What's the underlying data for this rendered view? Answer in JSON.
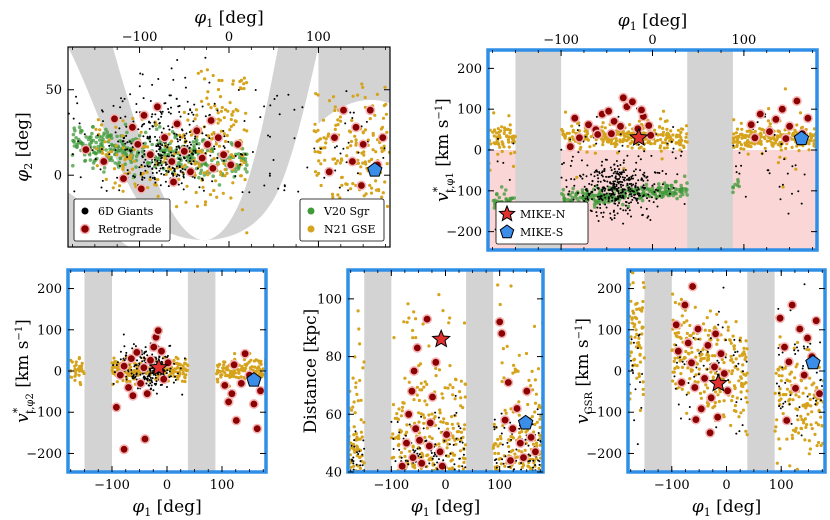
{
  "figure": {
    "colors": {
      "giant": "#000000",
      "gse": "#d6a31c",
      "sgr": "#3f9a3a",
      "retro_fill": "#8b0000",
      "retro_edge": "#f5b5b5",
      "mask": "#d3d3d3",
      "highlight": "#2f8fe6",
      "negative_region": "#fbd6d6",
      "mike_n": "#e0312f",
      "mike_s": "#3a8de8"
    }
  },
  "chart_data": [
    {
      "id": "sky",
      "type": "scatter",
      "xlabel_top": "φ1 [deg]",
      "ylabel": "φ2 [deg]",
      "xlim": [
        -180,
        180
      ],
      "ylim": [
        -42,
        75
      ],
      "xticks": [
        -100,
        0,
        100
      ],
      "yticks": [
        0,
        50
      ],
      "legend_left": [
        {
          "label": "6D Giants",
          "marker": "giant"
        },
        {
          "label": "Retrograde",
          "marker": "retro"
        }
      ],
      "legend_right": [
        {
          "label": "V20 Sgr",
          "marker": "sgr"
        },
        {
          "label": "N21 GSE",
          "marker": "gse"
        }
      ],
      "retrograde_stars": [
        [
          -128,
          33
        ],
        [
          -108,
          28
        ],
        [
          -102,
          18
        ],
        [
          -95,
          35
        ],
        [
          -88,
          12
        ],
        [
          -80,
          40
        ],
        [
          -72,
          22
        ],
        [
          -64,
          8
        ],
        [
          -58,
          30
        ],
        [
          -50,
          14
        ],
        [
          -43,
          2
        ],
        [
          -36,
          26
        ],
        [
          -30,
          10
        ],
        [
          -24,
          18
        ],
        [
          -18,
          4
        ],
        [
          -12,
          22
        ],
        [
          -6,
          12
        ],
        [
          2,
          6
        ],
        [
          -140,
          8
        ],
        [
          -118,
          -2
        ],
        [
          -98,
          -8
        ],
        [
          -62,
          -4
        ],
        [
          118,
          22
        ],
        [
          128,
          38
        ],
        [
          138,
          8
        ],
        [
          142,
          28
        ],
        [
          150,
          18
        ],
        [
          158,
          38
        ],
        [
          166,
          6
        ],
        [
          112,
          2
        ],
        [
          148,
          -6
        ],
        [
          172,
          22
        ],
        [
          -160,
          15
        ],
        [
          -20,
          32
        ],
        [
          10,
          18
        ]
      ],
      "mike_s": [
        [
          163,
          3
        ]
      ]
    },
    {
      "id": "pm_phi1",
      "type": "scatter",
      "highlighted": true,
      "xlabel_top": "φ1 [deg]",
      "ylabel": "v*t,φ1 [km s−1]",
      "xlim": [
        -180,
        180
      ],
      "ylim": [
        -245,
        245
      ],
      "xticks": [
        -100,
        0,
        100
      ],
      "yticks": [
        -200,
        -100,
        0,
        100,
        200
      ],
      "masked_phi1_ranges": [
        [
          -150,
          -100
        ],
        [
          38,
          88
        ]
      ],
      "negative_region_shaded": true,
      "legend": [
        {
          "label": "MIKE-N",
          "marker": "star"
        },
        {
          "label": "MIKE-S",
          "marker": "pentagon"
        }
      ],
      "retrograde_stars": [
        [
          -85,
          78
        ],
        [
          -70,
          62
        ],
        [
          -62,
          50
        ],
        [
          -55,
          88
        ],
        [
          -48,
          95
        ],
        [
          -42,
          70
        ],
        [
          -35,
          58
        ],
        [
          -28,
          106
        ],
        [
          -22,
          118
        ],
        [
          -16,
          52
        ],
        [
          -10,
          82
        ],
        [
          -4,
          60
        ],
        [
          -60,
          38
        ],
        [
          -80,
          30
        ],
        [
          -45,
          40
        ],
        [
          -32,
          128
        ],
        [
          -2,
          36
        ],
        [
          108,
          62
        ],
        [
          118,
          88
        ],
        [
          128,
          45
        ],
        [
          135,
          75
        ],
        [
          142,
          100
        ],
        [
          150,
          58
        ],
        [
          158,
          120
        ],
        [
          164,
          40
        ],
        [
          170,
          78
        ],
        [
          112,
          30
        ],
        [
          146,
          28
        ],
        [
          -90,
          8
        ],
        [
          -12,
          98
        ]
      ],
      "mike_n": [
        [
          -15,
          30
        ]
      ],
      "mike_s": [
        [
          163,
          28
        ]
      ]
    },
    {
      "id": "pm_phi2",
      "type": "scatter",
      "highlighted": true,
      "xlabel": "φ1 [deg]",
      "ylabel": "v*t,φ2 [km s−1]",
      "xlim": [
        -180,
        180
      ],
      "ylim": [
        -245,
        245
      ],
      "xticks": [
        -100,
        0,
        100
      ],
      "yticks": [
        -200,
        -100,
        0,
        100,
        200
      ],
      "masked_phi1_ranges": [
        [
          -150,
          -100
        ],
        [
          38,
          88
        ]
      ],
      "retrograde_stars": [
        [
          -92,
          -88
        ],
        [
          -85,
          -10
        ],
        [
          -78,
          12
        ],
        [
          -70,
          -40
        ],
        [
          -62,
          -60
        ],
        [
          -55,
          45
        ],
        [
          -48,
          -30
        ],
        [
          -42,
          8
        ],
        [
          -36,
          -55
        ],
        [
          -30,
          26
        ],
        [
          -24,
          58
        ],
        [
          -20,
          82
        ],
        [
          -16,
          98
        ],
        [
          -10,
          48
        ],
        [
          -6,
          -20
        ],
        [
          -78,
          -190
        ],
        [
          -40,
          -165
        ],
        [
          2,
          20
        ],
        [
          105,
          -35
        ],
        [
          112,
          -75
        ],
        [
          118,
          -55
        ],
        [
          126,
          -120
        ],
        [
          135,
          -30
        ],
        [
          142,
          42
        ],
        [
          150,
          -10
        ],
        [
          158,
          -80
        ],
        [
          164,
          -140
        ],
        [
          170,
          -48
        ],
        [
          122,
          15
        ],
        [
          -65,
          30
        ]
      ],
      "mike_n": [
        [
          -15,
          8
        ]
      ],
      "mike_s": [
        [
          158,
          -22
        ]
      ]
    },
    {
      "id": "distance",
      "type": "scatter",
      "highlighted": true,
      "xlabel": "φ1 [deg]",
      "ylabel": "Distance [kpc]",
      "xlim": [
        -180,
        180
      ],
      "ylim": [
        40,
        110
      ],
      "xticks": [
        -100,
        0,
        100
      ],
      "yticks": [
        40,
        60,
        80,
        100
      ],
      "masked_phi1_ranges": [
        [
          -150,
          -100
        ],
        [
          38,
          88
        ]
      ],
      "retrograde_stars": [
        [
          -52,
          83
        ],
        [
          -58,
          75
        ],
        [
          -62,
          68
        ],
        [
          -68,
          60
        ],
        [
          -55,
          55
        ],
        [
          -48,
          51
        ],
        [
          -72,
          50
        ],
        [
          -60,
          45
        ],
        [
          -44,
          43
        ],
        [
          -30,
          49
        ],
        [
          -24,
          66
        ],
        [
          -28,
          57
        ],
        [
          -34,
          93
        ],
        [
          -18,
          78
        ],
        [
          -10,
          47
        ],
        [
          -80,
          42
        ],
        [
          -6,
          42
        ],
        [
          2,
          53
        ],
        [
          100,
          92
        ],
        [
          104,
          88
        ],
        [
          110,
          58
        ],
        [
          116,
          71
        ],
        [
          124,
          55
        ],
        [
          132,
          62
        ],
        [
          138,
          50
        ],
        [
          144,
          45
        ],
        [
          150,
          68
        ],
        [
          158,
          52
        ],
        [
          120,
          44
        ],
        [
          166,
          47
        ]
      ],
      "mike_n": [
        [
          -8,
          86
        ]
      ],
      "mike_s": [
        [
          148,
          57
        ]
      ]
    },
    {
      "id": "vgsr",
      "type": "scatter",
      "highlighted": true,
      "xlabel": "φ1 [deg]",
      "ylabel": "vGSR [km s−1]",
      "xlim": [
        -180,
        180
      ],
      "ylim": [
        -245,
        245
      ],
      "xticks": [
        -100,
        0,
        100
      ],
      "yticks": [
        -200,
        -100,
        0,
        100,
        200
      ],
      "masked_phi1_ranges": [
        [
          -150,
          -100
        ],
        [
          38,
          88
        ]
      ],
      "retrograde_stars": [
        [
          -92,
          112
        ],
        [
          -88,
          48
        ],
        [
          -82,
          -28
        ],
        [
          -76,
          160
        ],
        [
          -70,
          68
        ],
        [
          -64,
          20
        ],
        [
          -58,
          -40
        ],
        [
          -52,
          102
        ],
        [
          -46,
          -92
        ],
        [
          -40,
          -18
        ],
        [
          -34,
          62
        ],
        [
          -28,
          -65
        ],
        [
          -22,
          10
        ],
        [
          -16,
          -112
        ],
        [
          -10,
          42
        ],
        [
          -4,
          -6
        ],
        [
          2,
          -48
        ],
        [
          -62,
          205
        ],
        [
          -30,
          -150
        ],
        [
          -56,
          -118
        ],
        [
          98,
          128
        ],
        [
          106,
          58
        ],
        [
          114,
          22
        ],
        [
          120,
          160
        ],
        [
          126,
          -42
        ],
        [
          134,
          102
        ],
        [
          142,
          -10
        ],
        [
          148,
          80
        ],
        [
          156,
          35
        ],
        [
          164,
          122
        ],
        [
          170,
          -55
        ],
        [
          110,
          -120
        ],
        [
          -20,
          90
        ]
      ],
      "mike_n": [
        [
          -15,
          -30
        ]
      ],
      "mike_s": [
        [
          158,
          20
        ]
      ]
    }
  ]
}
